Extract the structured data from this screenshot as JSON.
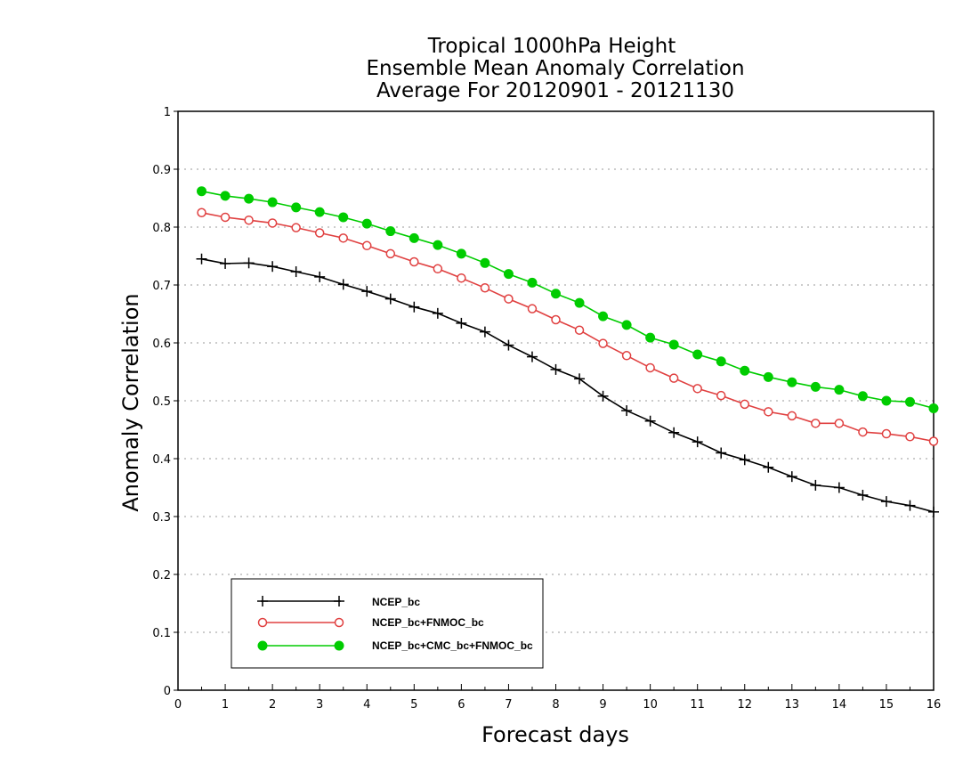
{
  "chart_data": {
    "type": "line",
    "title_lines": [
      "Tropical 1000hPa Height",
      "Ensemble Mean Anomaly Correlation",
      "Average For 20120901 - 20121130"
    ],
    "xlabel": "Forecast days",
    "ylabel": "Anomaly Correlation",
    "xlim": [
      0,
      16
    ],
    "ylim": [
      0,
      1
    ],
    "x_ticks": [
      "0",
      "1",
      "2",
      "3",
      "4",
      "5",
      "6",
      "7",
      "8",
      "9",
      "10",
      "11",
      "12",
      "13",
      "14",
      "15",
      "16"
    ],
    "y_ticks": [
      "0",
      "0.1",
      "0.2",
      "0.3",
      "0.4",
      "0.5",
      "0.6",
      "0.7",
      "0.8",
      "0.9",
      "1"
    ],
    "grid": "horizontal dotted",
    "legend_position": "bottom-left",
    "x": [
      0.5,
      1,
      1.5,
      2,
      2.5,
      3,
      3.5,
      4,
      4.5,
      5,
      5.5,
      6,
      6.5,
      7,
      7.5,
      8,
      8.5,
      9,
      9.5,
      10,
      10.5,
      11,
      11.5,
      12,
      12.5,
      13,
      13.5,
      14,
      14.5,
      15,
      15.5,
      16
    ],
    "series": [
      {
        "name": "NCEP_bc",
        "color": "#000000",
        "marker": "plus",
        "values": [
          0.745,
          0.737,
          0.738,
          0.732,
          0.723,
          0.714,
          0.701,
          0.689,
          0.676,
          0.662,
          0.651,
          0.634,
          0.619,
          0.596,
          0.576,
          0.554,
          0.538,
          0.508,
          0.483,
          0.465,
          0.445,
          0.429,
          0.41,
          0.398,
          0.385,
          0.369,
          0.354,
          0.35,
          0.337,
          0.326,
          0.319,
          0.308
        ]
      },
      {
        "name": "NCEP_bc+FNMOC_bc",
        "color": "#e04040",
        "marker": "open-circle",
        "values": [
          0.825,
          0.817,
          0.812,
          0.807,
          0.799,
          0.79,
          0.781,
          0.768,
          0.754,
          0.74,
          0.728,
          0.712,
          0.695,
          0.676,
          0.659,
          0.64,
          0.622,
          0.599,
          0.578,
          0.557,
          0.539,
          0.521,
          0.509,
          0.494,
          0.481,
          0.474,
          0.461,
          0.461,
          0.446,
          0.443,
          0.438,
          0.43
        ]
      },
      {
        "name": "NCEP_bc+CMC_bc+FNMOC_bc",
        "color": "#00cc00",
        "marker": "filled-circle",
        "values": [
          0.862,
          0.854,
          0.849,
          0.843,
          0.834,
          0.826,
          0.817,
          0.806,
          0.793,
          0.781,
          0.769,
          0.754,
          0.738,
          0.719,
          0.704,
          0.685,
          0.669,
          0.646,
          0.631,
          0.609,
          0.597,
          0.58,
          0.568,
          0.552,
          0.541,
          0.532,
          0.524,
          0.519,
          0.508,
          0.5,
          0.498,
          0.487
        ]
      }
    ]
  }
}
